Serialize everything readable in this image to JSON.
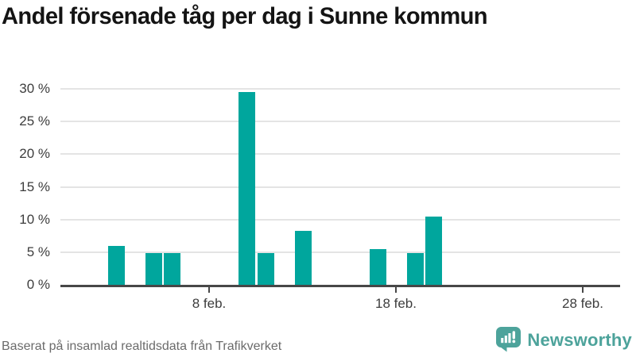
{
  "title": "Andel försenade tåg per dag i Sunne kommun",
  "footer": {
    "source_text": "Baserat på insamlad realtidsdata från Trafikverket"
  },
  "branding": {
    "logo_text": "Newsworthy",
    "logo_icon": "bar-chart-speech-bubble-icon",
    "logo_color": "#4da39b"
  },
  "colors": {
    "bar": "#00a69d",
    "gridline": "#e4e4e4",
    "axis": "#474747",
    "tick_label": "#3d3d3d",
    "title_text": "#141414",
    "footer_text": "#6b6b6b"
  },
  "chart_data": {
    "type": "bar",
    "title": "Andel försenade tåg per dag i Sunne kommun",
    "x_unit": "day of February",
    "x": [
      3,
      5,
      6,
      10,
      11,
      13,
      17,
      19,
      20
    ],
    "values": [
      5.9,
      4.8,
      4.8,
      29.5,
      4.8,
      8.3,
      5.5,
      4.8,
      10.5
    ],
    "xlabel": "",
    "ylabel": "",
    "x_domain": [
      1,
      29
    ],
    "x_ticks": [
      {
        "day": 8,
        "label": "8 feb."
      },
      {
        "day": 18,
        "label": "18 feb."
      },
      {
        "day": 28,
        "label": "28 feb."
      }
    ],
    "y_ticks": [
      {
        "value": 0,
        "label": "0 %"
      },
      {
        "value": 5,
        "label": "5 %"
      },
      {
        "value": 10,
        "label": "10 %"
      },
      {
        "value": 15,
        "label": "15 %"
      },
      {
        "value": 20,
        "label": "20 %"
      },
      {
        "value": 25,
        "label": "25 %"
      },
      {
        "value": 30,
        "label": "30 %"
      }
    ],
    "ylim": [
      0,
      31
    ],
    "grid": true,
    "legend": false
  }
}
